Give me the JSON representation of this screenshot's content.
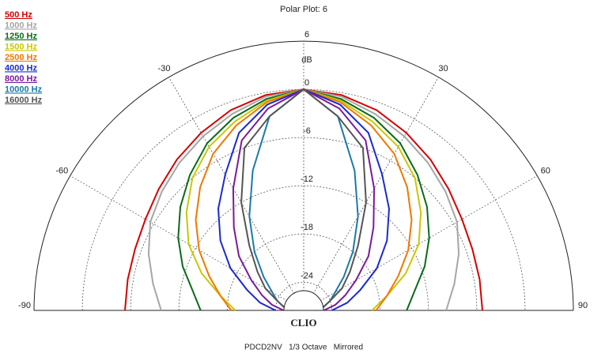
{
  "chart_data": {
    "type": "polar",
    "title": "Polar Plot: 6",
    "brand": "CLIO",
    "footer": "PDCD2NV   1/3 Octave   Mirrored",
    "r_unit": "dB",
    "rlim": [
      -27.5,
      6
    ],
    "rticks": [
      6,
      0,
      -6,
      -12,
      -18,
      -24
    ],
    "thetalim": [
      -90,
      90
    ],
    "thetaticks": [
      -90,
      -60,
      -30,
      30,
      60,
      90
    ],
    "grid": true,
    "legend": "top-left",
    "theta": [
      -90,
      -80,
      -70,
      -60,
      -50,
      -40,
      -30,
      -20,
      -10,
      0,
      10,
      20,
      30,
      40,
      50,
      60,
      70,
      80,
      90
    ],
    "series": [
      {
        "name": "500 Hz",
        "color": "#d40000",
        "values": [
          -5.3,
          -5.3,
          -5.2,
          -4.8,
          -4,
          -3,
          -2,
          -1,
          -0.3,
          0,
          -0.3,
          -1,
          -2,
          -3,
          -4,
          -4.8,
          -5.2,
          -5.3,
          -5.3
        ]
      },
      {
        "name": "1000 Hz",
        "color": "#a6a6a6",
        "values": [
          -9.8,
          -8.5,
          -7,
          -5.5,
          -4.5,
          -3.5,
          -2.5,
          -1.5,
          -0.5,
          0,
          -0.5,
          -1.5,
          -2.5,
          -3.5,
          -4.5,
          -5.5,
          -7,
          -8.5,
          -9.8
        ]
      },
      {
        "name": "1250 Hz",
        "color": "#0a6b1a",
        "values": [
          -14.7,
          -13.5,
          -11.5,
          -9.5,
          -7.5,
          -5.5,
          -3.5,
          -2,
          -0.8,
          0,
          -0.8,
          -2,
          -3.5,
          -5.5,
          -7.5,
          -9.5,
          -11.5,
          -13.5,
          -14.7
        ]
      },
      {
        "name": "1500 Hz",
        "color": "#c8c800",
        "values": [
          -19,
          -17,
          -14,
          -11,
          -8.5,
          -6,
          -4,
          -2.5,
          -1,
          0,
          -1,
          -2.5,
          -4,
          -6,
          -8.5,
          -11,
          -14,
          -17,
          -19
        ]
      },
      {
        "name": "2500 Hz",
        "color": "#f07800",
        "values": [
          -18.5,
          -17,
          -15,
          -12.5,
          -10,
          -7.5,
          -5,
          -3,
          -1.2,
          0,
          -1.2,
          -3,
          -5,
          -7.5,
          -10,
          -12.5,
          -15,
          -17,
          -18.5
        ]
      },
      {
        "name": "4000 Hz",
        "color": "#1a2ad0",
        "values": [
          -24,
          -22,
          -20,
          -17,
          -14,
          -11,
          -8,
          -4,
          -1.5,
          0,
          -1.5,
          -4,
          -8,
          -11,
          -14,
          -17,
          -20,
          -22,
          -24
        ]
      },
      {
        "name": "8000 Hz",
        "color": "#7a1a9a",
        "values": [
          -25,
          -23.5,
          -22,
          -20,
          -17,
          -14,
          -10,
          -5,
          -2,
          0,
          -2,
          -5,
          -10,
          -14,
          -17,
          -20,
          -22,
          -23.5,
          -25
        ]
      },
      {
        "name": "10000 Hz",
        "color": "#1a7aaa",
        "values": [
          -25.5,
          -25,
          -24,
          -23,
          -21,
          -18,
          -14,
          -9,
          -3,
          0,
          -3,
          -9,
          -14,
          -18,
          -21,
          -23,
          -24,
          -25,
          -25.5
        ]
      },
      {
        "name": "16000 Hz",
        "color": "#555555",
        "values": [
          -26,
          -25,
          -24,
          -22,
          -20,
          -17,
          -12,
          -6,
          -3,
          0,
          -3,
          -6,
          -12,
          -17,
          -20,
          -22,
          -24,
          -25,
          -26
        ]
      }
    ]
  }
}
